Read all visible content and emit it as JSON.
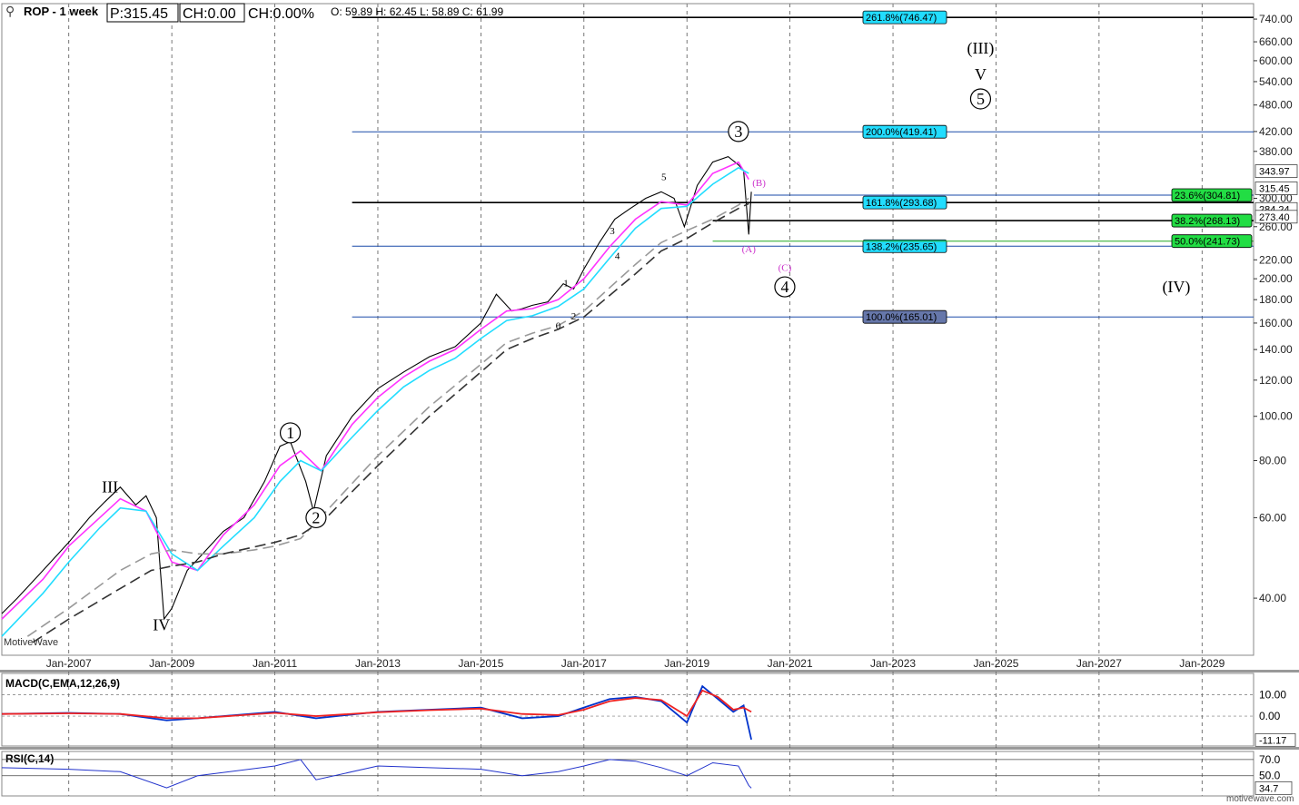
{
  "header": {
    "symbol": "ROP - 1 week",
    "price": "P:315.45",
    "change": "CH:0.00",
    "change_pct": "CH:0.00%",
    "ohlc": "O: 59.89  H: 62.45  L: 58.89  C: 61.99"
  },
  "watermark": "MotiveWave",
  "footer": "motivewave.com",
  "chart_data": [
    {
      "type": "line",
      "panel": "price",
      "scale": "log",
      "ylim": [
        30,
        800
      ],
      "y_ticks": [
        "740.00",
        "660.00",
        "600.00",
        "540.00",
        "480.00",
        "420.00",
        "380.00",
        "300.00",
        "260.00",
        "220.00",
        "200.00",
        "180.00",
        "160.00",
        "140.00",
        "120.00",
        "100.00",
        "80.00",
        "60.00",
        "40.00"
      ],
      "x_ticks": [
        "Jan-2007",
        "Jan-2009",
        "Jan-2011",
        "Jan-2013",
        "Jan-2015",
        "Jan-2017",
        "Jan-2019",
        "Jan-2021",
        "Jan-2023",
        "Jan-2025",
        "Jan-2027",
        "Jan-2029"
      ],
      "grid": true,
      "series": [
        {
          "color": "#000000",
          "x": [
            2005.7,
            2006.0,
            2006.5,
            2007.0,
            2007.4,
            2007.7,
            2008.0,
            2008.3,
            2008.5,
            2008.7,
            2008.85,
            2009.0,
            2009.3,
            2009.6,
            2010.0,
            2010.4,
            2010.8,
            2011.1,
            2011.3,
            2011.6,
            2011.75,
            2012.0,
            2012.5,
            2013.0,
            2013.5,
            2014.0,
            2014.5,
            2015.0,
            2015.3,
            2015.6,
            2015.8,
            2016.0,
            2016.3,
            2016.6,
            2016.8,
            2017.0,
            2017.3,
            2017.6,
            2017.9,
            2018.2,
            2018.5,
            2018.75,
            2018.95,
            2019.2,
            2019.5,
            2019.8,
            2020.0,
            2020.1,
            2020.2,
            2020.25
          ],
          "values": [
            37,
            40,
            46,
            53,
            60,
            65,
            70,
            64,
            67,
            60,
            36,
            38,
            46,
            50,
            56,
            60,
            72,
            86,
            88,
            72,
            62,
            82,
            100,
            115,
            125,
            135,
            142,
            160,
            185,
            170,
            172,
            175,
            178,
            195,
            190,
            210,
            240,
            270,
            285,
            300,
            310,
            300,
            260,
            320,
            360,
            370,
            355,
            345,
            250,
            310
          ]
        },
        {
          "name": "",
          "color": "#ff33ff",
          "x": [
            2005.7,
            2006.5,
            2007.0,
            2007.6,
            2008.0,
            2008.5,
            2009.0,
            2009.5,
            2010.0,
            2010.6,
            2011.1,
            2011.5,
            2011.9,
            2012.5,
            2013.0,
            2013.5,
            2014.0,
            2014.5,
            2015.0,
            2015.5,
            2016.0,
            2016.5,
            2017.0,
            2017.5,
            2018.0,
            2018.5,
            2019.0,
            2019.5,
            2020.0,
            2020.2
          ],
          "values": [
            36,
            44,
            52,
            60,
            66,
            62,
            48,
            46,
            55,
            64,
            78,
            84,
            76,
            96,
            110,
            122,
            132,
            140,
            155,
            170,
            172,
            180,
            200,
            235,
            270,
            295,
            290,
            340,
            360,
            330
          ]
        },
        {
          "name": "",
          "color": "#22ddff",
          "x": [
            2005.7,
            2006.5,
            2007.0,
            2007.6,
            2008.0,
            2008.5,
            2009.0,
            2009.5,
            2010.0,
            2010.6,
            2011.1,
            2011.5,
            2011.9,
            2012.5,
            2013.0,
            2013.5,
            2014.0,
            2014.5,
            2015.0,
            2015.5,
            2016.0,
            2016.5,
            2017.0,
            2017.5,
            2018.0,
            2018.5,
            2019.0,
            2019.5,
            2020.0,
            2020.2
          ],
          "values": [
            33,
            41,
            48,
            57,
            63,
            62,
            50,
            46,
            52,
            60,
            72,
            80,
            76,
            90,
            103,
            116,
            126,
            134,
            148,
            162,
            166,
            174,
            190,
            222,
            258,
            285,
            288,
            322,
            350,
            340
          ]
        },
        {
          "name": "",
          "color": "#999999",
          "dash": true,
          "x": [
            2006.2,
            2007.0,
            2008.0,
            2008.6,
            2009.0,
            2009.5,
            2010.0,
            2010.6,
            2011.0,
            2011.5,
            2012.0,
            2013.0,
            2014.0,
            2015.0,
            2015.5,
            2016.0,
            2016.5,
            2017.0,
            2018.0,
            2018.5,
            2019.0,
            2019.5,
            2020.0,
            2020.2
          ],
          "values": [
            33,
            38,
            46,
            50,
            51,
            50,
            50,
            51,
            52,
            54,
            62,
            82,
            105,
            130,
            145,
            152,
            158,
            170,
            215,
            240,
            255,
            270,
            290,
            300
          ]
        },
        {
          "name": "",
          "color": "#333333",
          "dash": true,
          "x": [
            2006.3,
            2007.0,
            2008.0,
            2008.6,
            2009.0,
            2009.5,
            2010.0,
            2011.0,
            2011.5,
            2012.0,
            2013.0,
            2014.0,
            2015.0,
            2015.5,
            2016.0,
            2016.5,
            2017.0,
            2018.0,
            2018.5,
            2019.0,
            2019.5,
            2020.0,
            2020.2
          ],
          "values": [
            32,
            36,
            42,
            46,
            47,
            48,
            50,
            53,
            55,
            60,
            78,
            100,
            125,
            140,
            148,
            155,
            165,
            205,
            230,
            245,
            265,
            285,
            292
          ]
        }
      ],
      "wave_labels": [
        {
          "text": "III",
          "x": 2007.8,
          "y": 70,
          "circled": false
        },
        {
          "text": "IV",
          "x": 2008.8,
          "y": 35,
          "circled": false
        },
        {
          "text": "1",
          "x": 2011.3,
          "y": 92,
          "circled": true
        },
        {
          "text": "2",
          "x": 2011.8,
          "y": 60,
          "circled": true
        },
        {
          "text": "3",
          "x": 2020.0,
          "y": 420,
          "circled": true
        },
        {
          "text": "4",
          "x": 2020.9,
          "y": 192,
          "circled": true
        },
        {
          "text": "5",
          "x": 2024.7,
          "y": 495,
          "circled": true
        },
        {
          "text": "V",
          "x": 2024.7,
          "y": 560,
          "circled": false
        },
        {
          "text": "(III)",
          "x": 2024.7,
          "y": 640,
          "circled": false
        },
        {
          "text": "(IV)",
          "x": 2028.5,
          "y": 192,
          "circled": false
        },
        {
          "text": "(A)",
          "x": 2020.2,
          "y": 233,
          "circled": false,
          "color": "#cc33cc"
        },
        {
          "text": "(B)",
          "x": 2020.4,
          "y": 325,
          "circled": false,
          "color": "#cc33cc"
        },
        {
          "text": "(C)",
          "x": 2020.9,
          "y": 212,
          "circled": false,
          "color": "#cc33cc"
        },
        {
          "text": "0",
          "x": 2016.5,
          "y": 158,
          "circled": false
        },
        {
          "text": "1",
          "x": 2016.65,
          "y": 196,
          "circled": false
        },
        {
          "text": "2",
          "x": 2016.8,
          "y": 166,
          "circled": false
        },
        {
          "text": "3",
          "x": 2017.55,
          "y": 255,
          "circled": false
        },
        {
          "text": "4",
          "x": 2017.65,
          "y": 225,
          "circled": false
        },
        {
          "text": "5",
          "x": 2018.55,
          "y": 335,
          "circled": false
        }
      ],
      "fib_lines": [
        {
          "label": "261.8%(746.47)",
          "value": 746.47,
          "x_start": 2012.5,
          "color": "#000000",
          "box": "#22ddff"
        },
        {
          "label": "200.0%(419.41)",
          "value": 419.41,
          "x_start": 2012.5,
          "color": "#1a4aa8",
          "box": "#22ddff"
        },
        {
          "label": "161.8%(293.68)",
          "value": 293.68,
          "x_start": 2012.5,
          "color": "#000000",
          "box": "#22ddff"
        },
        {
          "label": "138.2%(235.65)",
          "value": 235.65,
          "x_start": 2012.5,
          "color": "#1a4aa8",
          "box": "#22ddff"
        },
        {
          "label": "100.0%(165.01)",
          "value": 165.01,
          "x_start": 2012.5,
          "color": "#1a4aa8",
          "box": "#6677aa"
        },
        {
          "label": "23.6%(304.81)",
          "value": 304.81,
          "x_start": 2020.3,
          "color": "#1a4aa8",
          "box": "#22dd44",
          "right": true
        },
        {
          "label": "38.2%(268.13)",
          "value": 268.13,
          "x_start": 2019.5,
          "color": "#000000",
          "box": "#22dd44",
          "right": true
        },
        {
          "label": "50.0%(241.73)",
          "value": 241.73,
          "x_start": 2019.5,
          "color": "#22aa22",
          "box": "#22dd44",
          "right": true
        }
      ],
      "price_tags": [
        {
          "text": "343.97",
          "value": 343.97
        },
        {
          "text": "315.45",
          "value": 315.45
        },
        {
          "text": "284.24",
          "value": 284.24
        },
        {
          "text": "273.40",
          "value": 273.4
        }
      ]
    },
    {
      "type": "line",
      "panel": "macd",
      "title": "MACD(C,EMA,12,26,9)",
      "y_ticks": [
        "10.00",
        "0.00"
      ],
      "value_tag": "-11.17",
      "ylim": [
        -14,
        20
      ],
      "series": [
        {
          "name": "MACD",
          "color": "#0033cc",
          "x": [
            2005.7,
            2007.0,
            2008.0,
            2008.9,
            2009.5,
            2011.0,
            2011.8,
            2013.0,
            2014.0,
            2015.0,
            2015.8,
            2016.5,
            2017.0,
            2017.5,
            2018.0,
            2018.5,
            2019.0,
            2019.3,
            2019.6,
            2019.9,
            2020.1,
            2020.25
          ],
          "values": [
            1,
            1.5,
            1,
            -2,
            -1,
            2,
            -1,
            2,
            3,
            4,
            -1,
            0,
            4,
            8,
            9,
            7,
            -3,
            14,
            8,
            2,
            5,
            -11
          ]
        },
        {
          "name": "Signal",
          "color": "#ee2222",
          "x": [
            2005.7,
            2007.0,
            2008.0,
            2008.9,
            2009.5,
            2011.0,
            2011.8,
            2013.0,
            2014.0,
            2015.0,
            2015.8,
            2016.5,
            2017.0,
            2017.5,
            2018.0,
            2018.5,
            2019.0,
            2019.3,
            2019.6,
            2019.9,
            2020.1,
            2020.25
          ],
          "values": [
            1,
            1.3,
            1,
            -1,
            -1,
            1.5,
            0,
            1.8,
            2.8,
            3.5,
            1,
            0.5,
            3,
            7,
            8.5,
            7.5,
            0,
            12,
            9,
            3,
            4,
            2
          ]
        }
      ]
    },
    {
      "type": "line",
      "panel": "rsi",
      "title": "RSI(C,14)",
      "y_ticks": [
        "70.0",
        "50.0"
      ],
      "value_tag": "34.7",
      "ylim": [
        25,
        80
      ],
      "series": [
        {
          "name": "RSI",
          "color": "#2233cc",
          "x": [
            2005.7,
            2007.0,
            2008.0,
            2008.9,
            2009.5,
            2011.0,
            2011.5,
            2011.8,
            2013.0,
            2014.0,
            2015.0,
            2015.8,
            2016.5,
            2017.0,
            2017.5,
            2018.0,
            2018.5,
            2019.0,
            2019.5,
            2020.0,
            2020.2,
            2020.25
          ],
          "values": [
            60,
            58,
            55,
            35,
            50,
            62,
            70,
            45,
            62,
            60,
            58,
            50,
            55,
            62,
            70,
            68,
            60,
            50,
            66,
            62,
            38,
            34.7
          ]
        }
      ]
    }
  ]
}
